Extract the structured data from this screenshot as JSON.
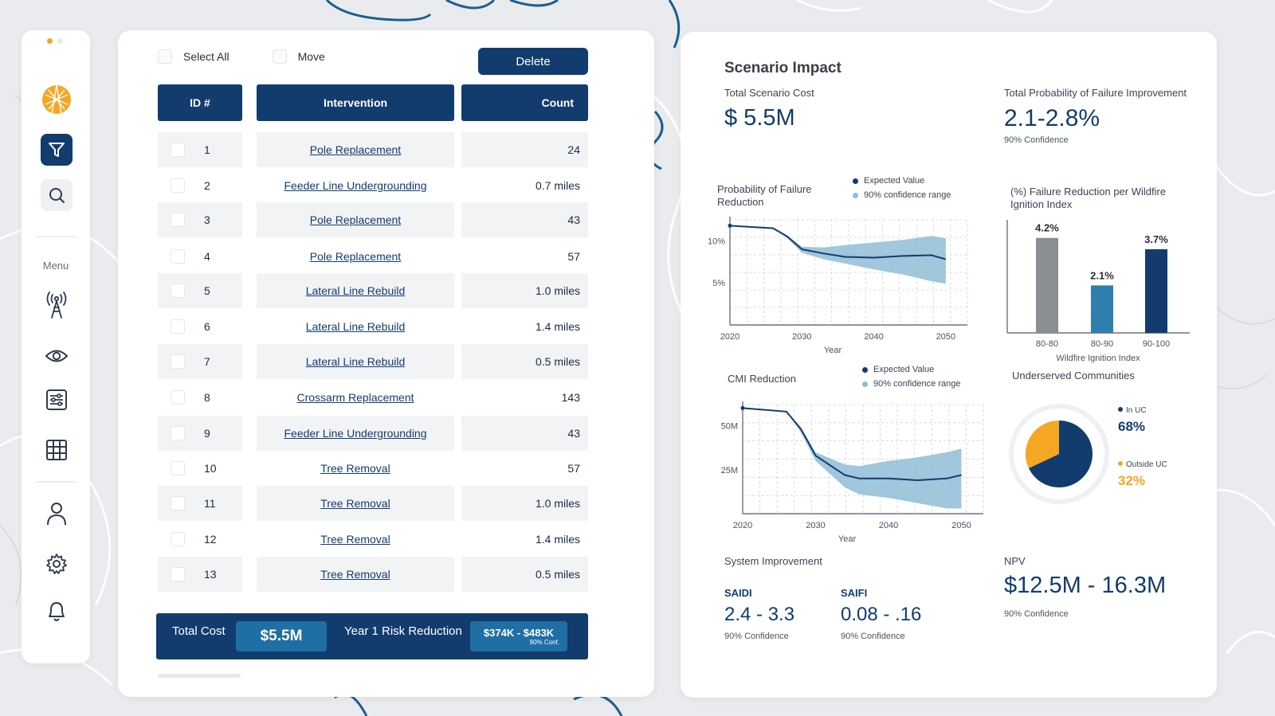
{
  "colors": {
    "navy": "#123c6e",
    "band": "#8fbdd6",
    "bar_gray": "#8a8d91",
    "bar_teal": "#2e7fb0",
    "orange": "#f5a623"
  },
  "sidebar": {
    "menu_label": "Menu",
    "icons": [
      "logo-globe-icon",
      "filter-icon",
      "search-icon",
      "antenna-tower-icon",
      "eye-icon",
      "sliders-icon",
      "grid-icon",
      "user-icon",
      "gear-icon",
      "bell-icon"
    ],
    "active": "filter-icon"
  },
  "toolbar": {
    "select_all": "Select All",
    "move": "Move",
    "delete": "Delete"
  },
  "table": {
    "headers": {
      "id": "ID #",
      "intervention": "Intervention",
      "count": "Count"
    },
    "rows": [
      {
        "id": "1",
        "intervention": "Pole Replacement",
        "count": "24"
      },
      {
        "id": "2",
        "intervention": "Feeder Line Undergrounding",
        "count": "0.7 miles"
      },
      {
        "id": "3",
        "intervention": "Pole Replacement",
        "count": "43"
      },
      {
        "id": "4",
        "intervention": "Pole Replacement",
        "count": "57"
      },
      {
        "id": "5",
        "intervention": "Lateral Line Rebuild",
        "count": "1.0 miles"
      },
      {
        "id": "6",
        "intervention": "Lateral Line Rebuild",
        "count": "1.4 miles"
      },
      {
        "id": "7",
        "intervention": "Lateral Line Rebuild",
        "count": "0.5 miles"
      },
      {
        "id": "8",
        "intervention": "Crossarm Replacement",
        "count": "143"
      },
      {
        "id": "9",
        "intervention": "Feeder Line Undergrounding",
        "count": "43"
      },
      {
        "id": "10",
        "intervention": "Tree Removal",
        "count": "57"
      },
      {
        "id": "11",
        "intervention": "Tree Removal",
        "count": "1.0 miles"
      },
      {
        "id": "12",
        "intervention": "Tree Removal",
        "count": "1.4 miles"
      },
      {
        "id": "13",
        "intervention": "Tree Removal",
        "count": "0.5 miles"
      }
    ]
  },
  "footer": {
    "total_cost_label": "Total Cost",
    "total_cost_value": "$5.5M",
    "risk_label": "Year 1 Risk Reduction",
    "risk_value": "$374K - $483K",
    "risk_conf": "90% Conf."
  },
  "impact": {
    "title": "Scenario Impact",
    "cost_label": "Total Scenario Cost",
    "cost_value": "$ 5.5M",
    "pof_label": "Total Probability of Failure Improvement",
    "pof_value": "2.1-2.8%",
    "pof_conf": "90% Confidence",
    "system_label": "System Improvement",
    "saidi_label": "SAIDI",
    "saidi_value": "2.4 - 3.3",
    "saidi_conf": "90% Confidence",
    "saifi_label": "SAIFI",
    "saifi_value": "0.08 - .16",
    "saifi_conf": "90% Confidence",
    "npv_label": "NPV",
    "npv_value": "$12.5M - 16.3M",
    "npv_conf": "90% Confidence"
  },
  "chart_data": [
    {
      "type": "line",
      "title": "Probability of Failure Reduction",
      "legend": [
        "Expected Value",
        "90% confidence range"
      ],
      "xlabel": "Year",
      "x_ticks": [
        "2020",
        "2030",
        "2040",
        "2050"
      ],
      "y_ticks": [
        "5%",
        "10%"
      ],
      "xlim": [
        2020,
        2053
      ],
      "ylim": [
        0,
        12.5
      ],
      "x": [
        2020,
        2026,
        2028,
        2030,
        2033,
        2036,
        2040,
        2044,
        2048,
        2050
      ],
      "expected": [
        11.8,
        11.5,
        10.5,
        9.0,
        8.5,
        8.1,
        8.0,
        8.2,
        8.3,
        7.8
      ],
      "lower": [
        11.8,
        11.5,
        10.3,
        8.6,
        7.8,
        7.3,
        6.6,
        6.0,
        5.2,
        4.9
      ],
      "upper": [
        11.8,
        11.5,
        10.6,
        9.3,
        9.2,
        9.5,
        9.8,
        10.1,
        10.6,
        10.3
      ]
    },
    {
      "type": "bar",
      "title": "(%) Failure Reduction per Wildfire Ignition Index",
      "xlabel": "Wildfire Ignition Index",
      "categories": [
        "80-80",
        "80-90",
        "90-100"
      ],
      "values": [
        4.2,
        2.1,
        3.7
      ],
      "labels": [
        "4.2%",
        "2.1%",
        "3.7%"
      ],
      "ylim": [
        0,
        5
      ]
    },
    {
      "type": "line",
      "title": "CMI Reduction",
      "legend": [
        "Expected Value",
        "90% confidence range"
      ],
      "xlabel": "Year",
      "x_ticks": [
        "2020",
        "2030",
        "2040",
        "2050"
      ],
      "y_ticks": [
        "25M",
        "50M"
      ],
      "xlim": [
        2020,
        2053
      ],
      "ylim": [
        0,
        62
      ],
      "x": [
        2020,
        2026,
        2028,
        2030,
        2034,
        2036,
        2040,
        2044,
        2048,
        2050
      ],
      "expected": [
        60,
        58,
        48,
        33,
        22,
        20,
        20,
        19,
        20,
        22
      ],
      "lower": [
        60,
        58,
        46,
        30,
        15,
        11,
        9,
        6,
        3,
        3
      ],
      "upper": [
        60,
        58,
        49,
        35,
        28,
        27,
        30,
        32,
        35,
        37
      ]
    },
    {
      "type": "pie",
      "title": "Underserved Communities",
      "labels": [
        "In UC",
        "Outside UC"
      ],
      "values": [
        68,
        32
      ],
      "value_labels": [
        "68%",
        "32%"
      ]
    }
  ]
}
